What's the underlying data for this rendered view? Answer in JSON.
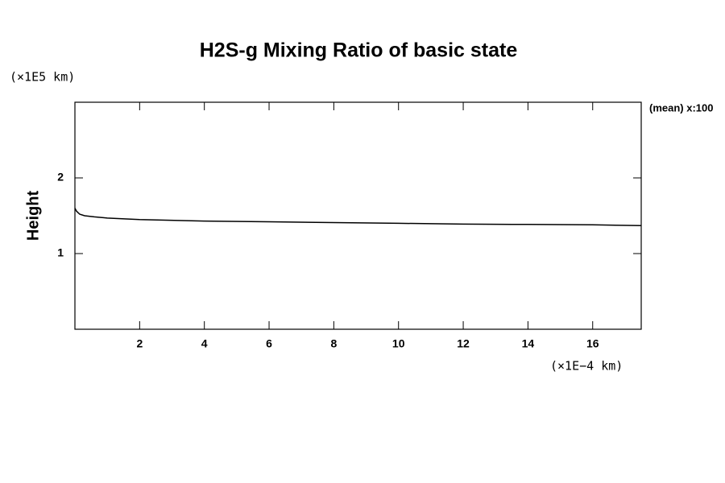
{
  "chart_data": {
    "type": "line",
    "title": "H2S-g Mixing Ratio of basic state",
    "y_unit": "(×1E5 km)",
    "ylabel": "Height",
    "x_unit": "(×1E−4 km)",
    "annotation": "(mean) x:100",
    "x": [
      0,
      0.05,
      0.15,
      0.3,
      0.6,
      1,
      2,
      4,
      6,
      8,
      10,
      12,
      14,
      16,
      17.5
    ],
    "series": [
      {
        "color": "#000000",
        "values": [
          1.6,
          1.56,
          1.52,
          1.5,
          1.485,
          1.47,
          1.45,
          1.43,
          1.42,
          1.41,
          1.4,
          1.39,
          1.385,
          1.38,
          1.37
        ]
      }
    ],
    "xlim": [
      0,
      17.5
    ],
    "ylim": [
      0,
      3
    ],
    "xticks": [
      2,
      4,
      6,
      8,
      10,
      12,
      14,
      16
    ],
    "yticks": [
      1,
      2
    ]
  }
}
